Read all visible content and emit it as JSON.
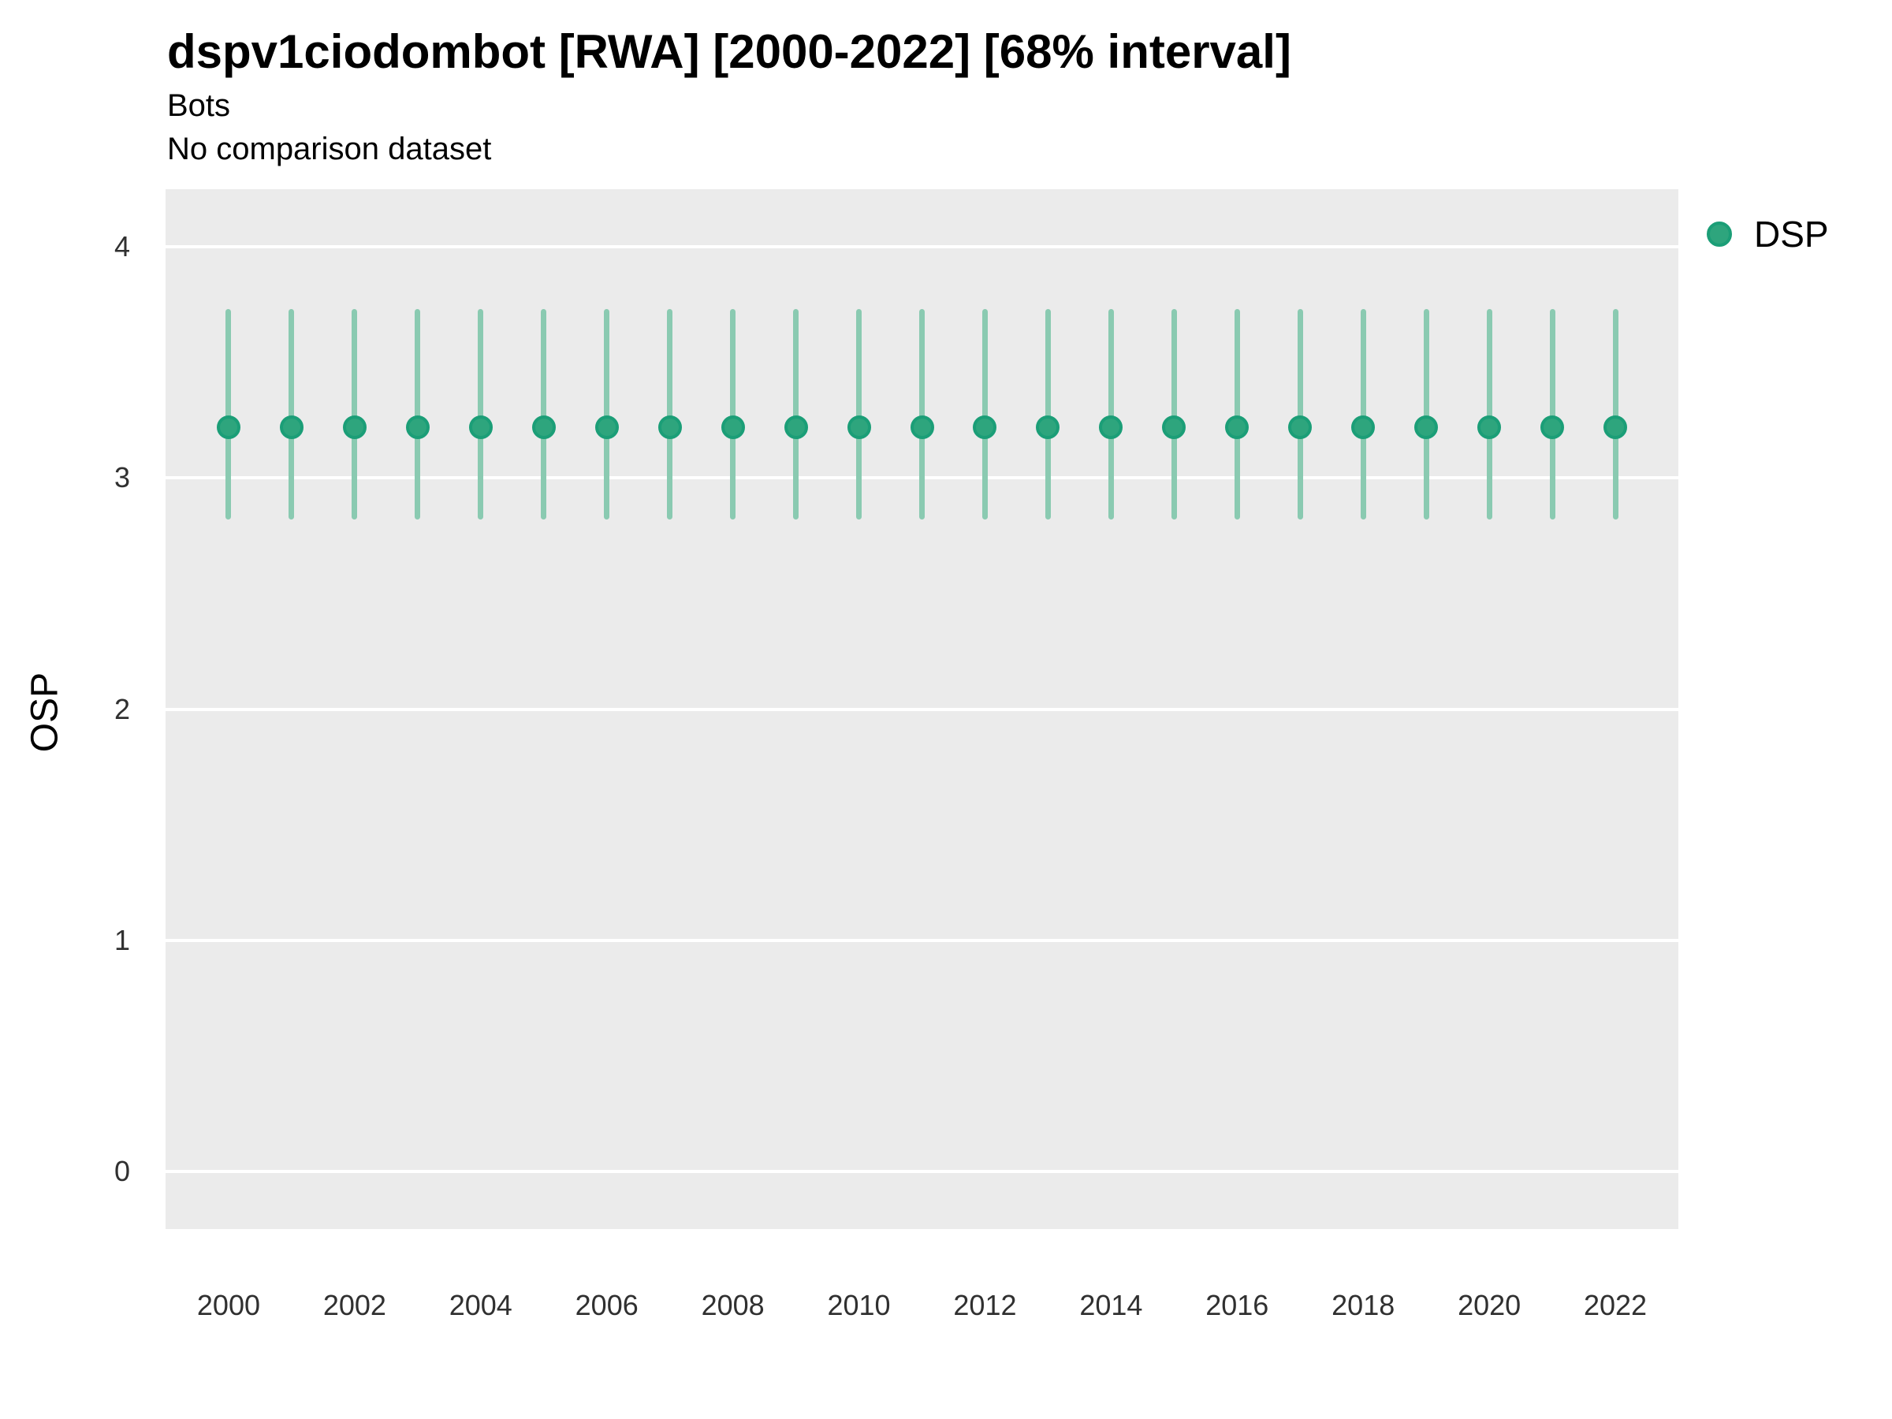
{
  "title": "dspv1ciodombot [RWA] [2000-2022] [68% interval]",
  "subtitle": "Bots",
  "comparison_note": "No comparison dataset",
  "y_axis_title": "OSP",
  "legend": {
    "items": [
      {
        "label": "DSP",
        "marker": "circle-icon"
      }
    ]
  },
  "colors": {
    "point_fill": "#2ea57d",
    "point_stroke": "#1b9e77",
    "interval_line": "#8acab1",
    "panel_background": "#ebebeb",
    "gridline": "#ffffff",
    "tick_text": "#303030",
    "title_text": "#000000"
  },
  "chart_data": {
    "type": "scatter",
    "title": "dspv1ciodombot [RWA] [2000-2022] [68% interval]",
    "subtitle": "Bots",
    "note": "No comparison dataset",
    "xlabel": "",
    "ylabel": "OSP",
    "legend_position": "right",
    "grid": "horizontal-major-only",
    "interval_level": "68%",
    "series": [
      {
        "name": "DSP",
        "x": [
          2000,
          2001,
          2002,
          2003,
          2004,
          2005,
          2006,
          2007,
          2008,
          2009,
          2010,
          2011,
          2012,
          2013,
          2014,
          2015,
          2016,
          2017,
          2018,
          2019,
          2020,
          2021,
          2022
        ],
        "y": [
          3.22,
          3.22,
          3.22,
          3.22,
          3.22,
          3.22,
          3.22,
          3.22,
          3.22,
          3.22,
          3.22,
          3.22,
          3.22,
          3.22,
          3.22,
          3.22,
          3.22,
          3.22,
          3.22,
          3.22,
          3.22,
          3.22,
          3.22
        ],
        "y_low": [
          2.82,
          2.82,
          2.82,
          2.82,
          2.82,
          2.82,
          2.82,
          2.82,
          2.82,
          2.82,
          2.82,
          2.82,
          2.82,
          2.82,
          2.82,
          2.82,
          2.82,
          2.82,
          2.82,
          2.82,
          2.82,
          2.82,
          2.82
        ],
        "y_high": [
          3.73,
          3.73,
          3.73,
          3.73,
          3.73,
          3.73,
          3.73,
          3.73,
          3.73,
          3.73,
          3.73,
          3.73,
          3.73,
          3.73,
          3.73,
          3.73,
          3.73,
          3.73,
          3.73,
          3.73,
          3.73,
          3.73,
          3.73
        ]
      }
    ],
    "x_ticks": [
      2000,
      2002,
      2004,
      2006,
      2008,
      2010,
      2012,
      2014,
      2016,
      2018,
      2020,
      2022
    ],
    "y_ticks": [
      0,
      1,
      2,
      3,
      4
    ],
    "xlim": [
      1999,
      2023
    ],
    "ylim": [
      -0.25,
      4.25
    ]
  }
}
